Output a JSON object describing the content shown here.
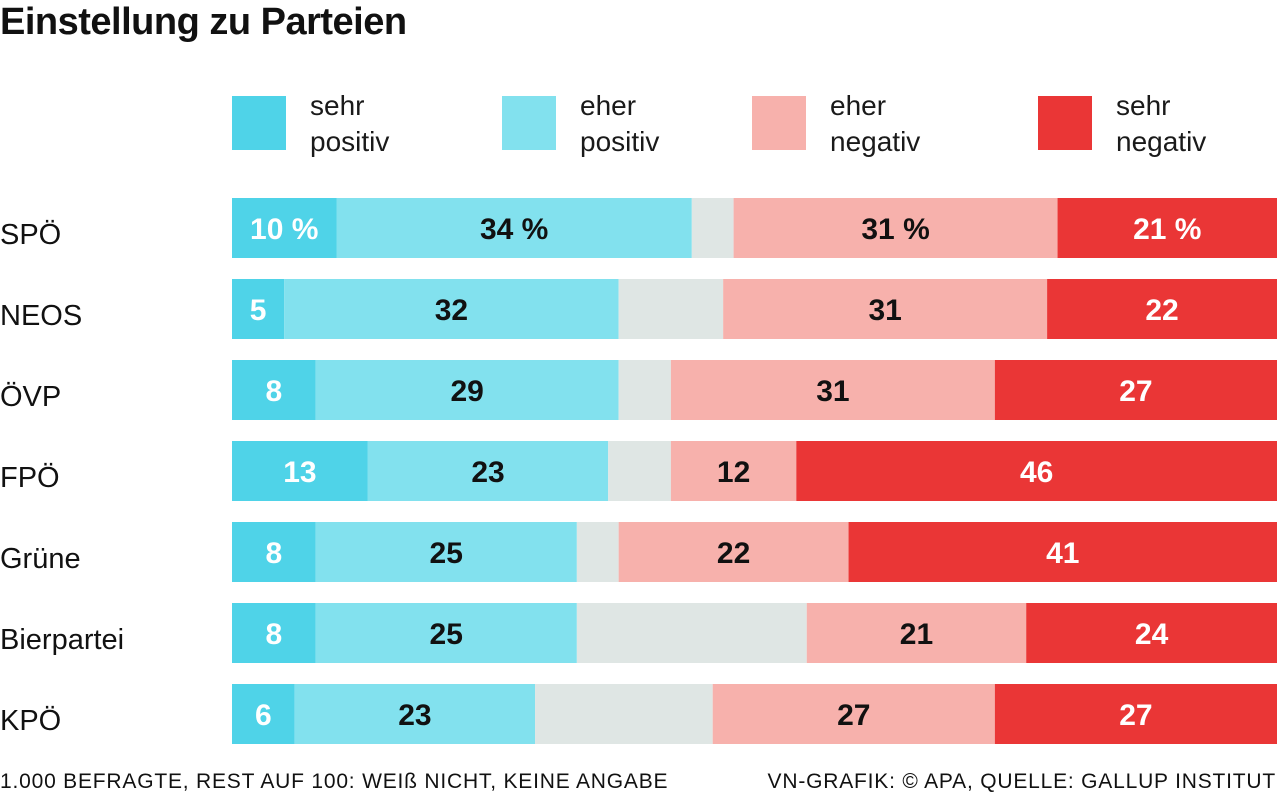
{
  "chart_data": {
    "type": "bar",
    "orientation": "horizontal",
    "stacked": true,
    "title": "Einstellung zu Parteien",
    "categories": [
      "SPÖ",
      "NEOS",
      "ÖVP",
      "FPÖ",
      "Grüne",
      "Bierpartei",
      "KPÖ"
    ],
    "series": [
      {
        "name": "sehr positiv",
        "legend_lines": [
          "sehr",
          "positiv"
        ],
        "color": "#4fd3e8",
        "label_color": "#ffffff",
        "values": [
          10,
          5,
          8,
          13,
          8,
          8,
          6
        ]
      },
      {
        "name": "eher positiv",
        "legend_lines": [
          "eher",
          "positiv"
        ],
        "color": "#82e1ee",
        "label_color": "#111111",
        "values": [
          34,
          32,
          29,
          23,
          25,
          25,
          23
        ]
      },
      {
        "name": "weiß nicht, keine Angabe",
        "legend": false,
        "color": "#dfe6e4",
        "values": [
          4,
          10,
          5,
          6,
          4,
          22,
          17
        ]
      },
      {
        "name": "eher negativ",
        "legend_lines": [
          "eher",
          "negativ"
        ],
        "color": "#f7b1ac",
        "label_color": "#111111",
        "values": [
          31,
          31,
          31,
          12,
          22,
          21,
          27
        ]
      },
      {
        "name": "sehr negativ",
        "legend_lines": [
          "sehr",
          "negativ"
        ],
        "color": "#ea3636",
        "label_color": "#ffffff",
        "values": [
          21,
          22,
          27,
          46,
          41,
          24,
          27
        ]
      }
    ],
    "data_labels": [
      [
        "10 %",
        "34 %",
        "",
        "31 %",
        "21 %"
      ],
      [
        "5",
        "32",
        "",
        "31",
        "22"
      ],
      [
        "8",
        "29",
        "",
        "31",
        "27"
      ],
      [
        "13",
        "23",
        "",
        "12",
        "46"
      ],
      [
        "8",
        "25",
        "",
        "22",
        "41"
      ],
      [
        "8",
        "25",
        "",
        "21",
        "24"
      ],
      [
        "6",
        "23",
        "",
        "27",
        "27"
      ]
    ],
    "xlim": [
      0,
      100
    ],
    "xlabel": "",
    "ylabel": "",
    "grid": false,
    "legend_position": "top"
  },
  "footer": {
    "left": "1.000 BEFRAGTE, REST AUF 100: WEIß NICHT, KEINE ANGABE",
    "right": "VN-GRAFIK: © APA, QUELLE: GALLUP INSTITUT"
  }
}
